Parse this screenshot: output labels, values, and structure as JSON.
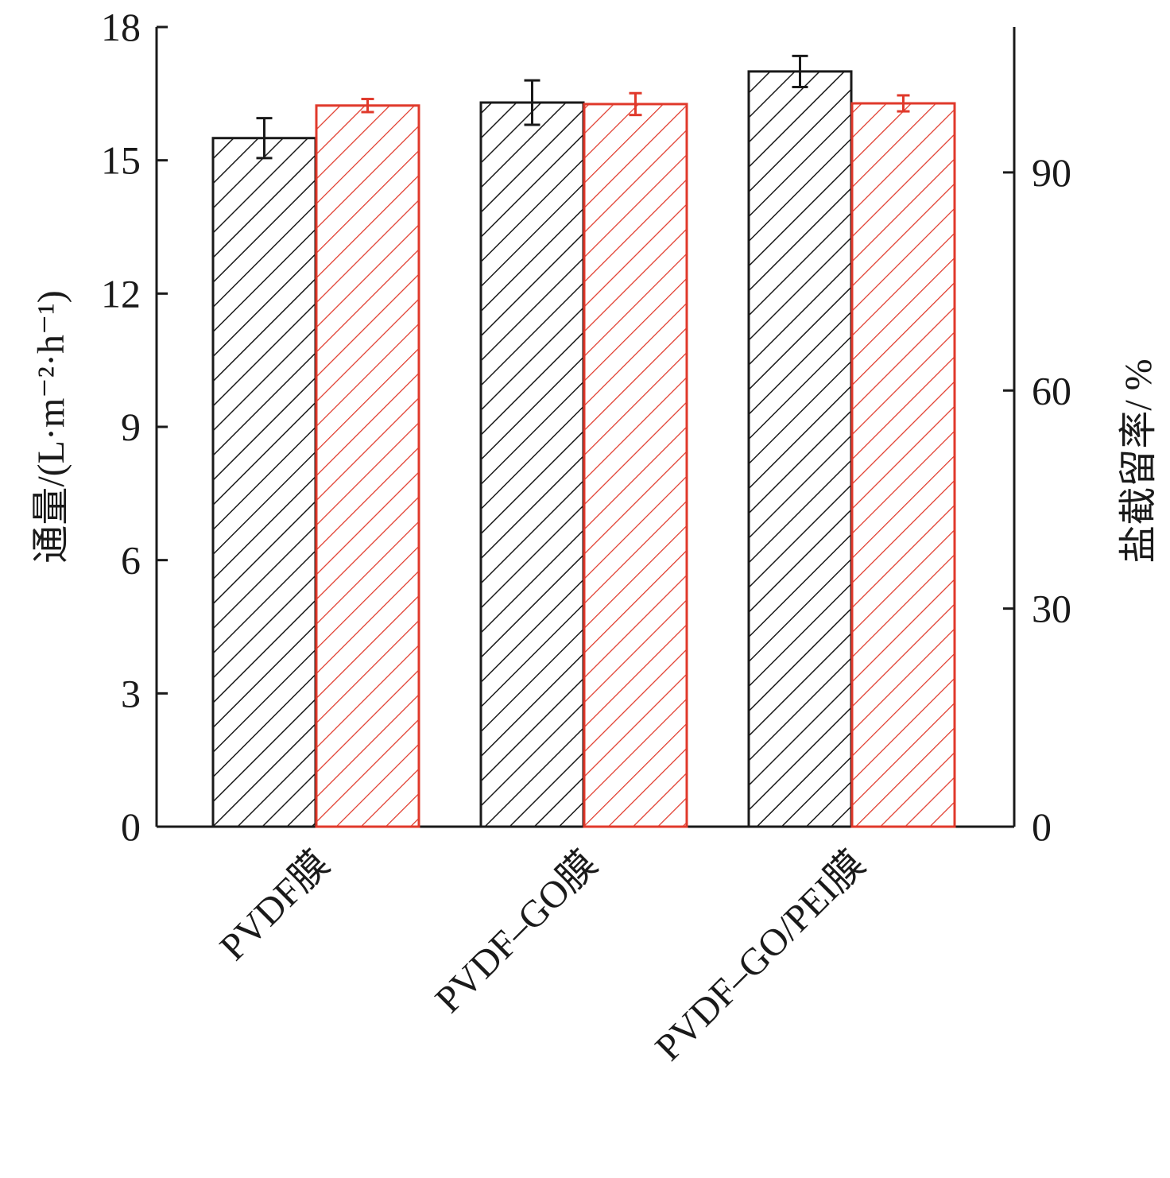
{
  "chart_data": {
    "type": "bar",
    "categories": [
      "PVDF膜",
      "PVDF–GO膜",
      "PVDF–GO/PEI膜"
    ],
    "series": [
      {
        "name": "通量",
        "axis": "left",
        "color": "#1a1a1a",
        "values": [
          15.5,
          16.3,
          17.0
        ],
        "errors": [
          0.45,
          0.5,
          0.35
        ]
      },
      {
        "name": "盐截留率",
        "axis": "right",
        "color": "#e0392b",
        "values": [
          99.2,
          99.4,
          99.5
        ],
        "errors": [
          0.9,
          1.5,
          1.1
        ]
      }
    ],
    "ylabel": "通量/(L·m⁻²·h⁻¹)",
    "ylabel_right": "盐截留率/ %",
    "xlabel": "",
    "ylim": [
      0,
      18
    ],
    "ylim_right": [
      0,
      110
    ],
    "yticks": [
      0,
      3,
      6,
      9,
      12,
      15,
      18
    ],
    "yticks_right": [
      0,
      30,
      60,
      90
    ],
    "grid": false,
    "pattern": "diagonal-hatch"
  }
}
